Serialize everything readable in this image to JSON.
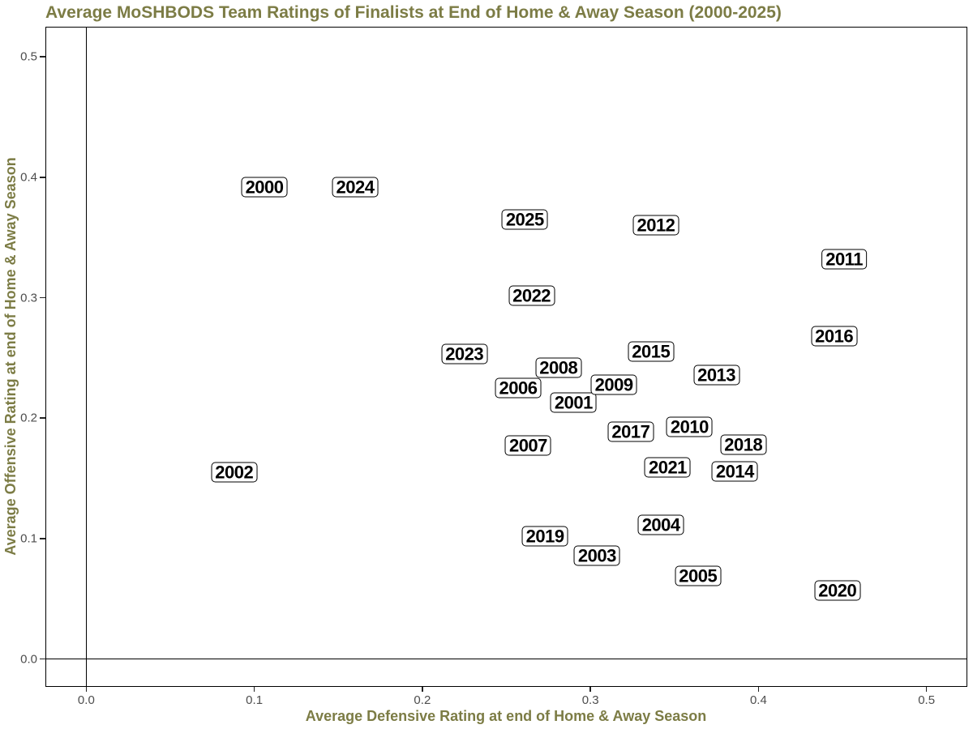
{
  "page": {
    "title": "Average MoSHBODS Team Ratings of Finalists at End of Home & Away Season (2000-2025)"
  },
  "colors": {
    "title_text": "#7c7c45",
    "axis_title_text": "#7c7c45",
    "tick_label_text": "#4d4d4d",
    "panel_border": "#000000",
    "zero_line": "#000000",
    "point_box_border": "#000000",
    "point_box_fill": "#ffffff",
    "point_text": "#000000",
    "background": "#ffffff"
  },
  "chart_data": {
    "type": "scatter",
    "title": "Average MoSHBODS Team Ratings of Finalists at End of Home & Away Season (2000-2025)",
    "xlabel": "Average Defensive Rating at end of Home & Away Season",
    "ylabel": "Average Offensive Rating at end of Home & Away Season",
    "xlim": [
      -0.0243,
      0.5243
    ],
    "ylim": [
      -0.0232,
      0.525
    ],
    "x_ticks": [
      0,
      0.1,
      0.2,
      0.3,
      0.4,
      0.5
    ],
    "x_tick_labels": [
      "0.0",
      "0.1",
      "0.2",
      "0.3",
      "0.4",
      "0.5"
    ],
    "y_ticks": [
      0,
      0.1,
      0.2,
      0.3,
      0.4,
      0.5
    ],
    "y_tick_labels": [
      "0.0",
      "0.1",
      "0.2",
      "0.3",
      "0.4",
      "0.5"
    ],
    "grid": false,
    "legend": false,
    "point_style": "boxed-year-label",
    "reference_lines": {
      "vline_x": 0,
      "hline_y": 0
    },
    "points": [
      {
        "label": "2000",
        "x": 0.106,
        "y": 0.392
      },
      {
        "label": "2001",
        "x": 0.29,
        "y": 0.213
      },
      {
        "label": "2002",
        "x": 0.088,
        "y": 0.155
      },
      {
        "label": "2003",
        "x": 0.304,
        "y": 0.086
      },
      {
        "label": "2004",
        "x": 0.342,
        "y": 0.111
      },
      {
        "label": "2005",
        "x": 0.364,
        "y": 0.069
      },
      {
        "label": "2006",
        "x": 0.257,
        "y": 0.225
      },
      {
        "label": "2007",
        "x": 0.263,
        "y": 0.177
      },
      {
        "label": "2008",
        "x": 0.281,
        "y": 0.242
      },
      {
        "label": "2009",
        "x": 0.314,
        "y": 0.228
      },
      {
        "label": "2010",
        "x": 0.359,
        "y": 0.193
      },
      {
        "label": "2011",
        "x": 0.451,
        "y": 0.332
      },
      {
        "label": "2012",
        "x": 0.339,
        "y": 0.36
      },
      {
        "label": "2013",
        "x": 0.375,
        "y": 0.236
      },
      {
        "label": "2014",
        "x": 0.386,
        "y": 0.156
      },
      {
        "label": "2015",
        "x": 0.336,
        "y": 0.255
      },
      {
        "label": "2016",
        "x": 0.445,
        "y": 0.268
      },
      {
        "label": "2017",
        "x": 0.324,
        "y": 0.189
      },
      {
        "label": "2018",
        "x": 0.391,
        "y": 0.178
      },
      {
        "label": "2019",
        "x": 0.273,
        "y": 0.102
      },
      {
        "label": "2020",
        "x": 0.447,
        "y": 0.057
      },
      {
        "label": "2021",
        "x": 0.346,
        "y": 0.159
      },
      {
        "label": "2022",
        "x": 0.265,
        "y": 0.302
      },
      {
        "label": "2023",
        "x": 0.225,
        "y": 0.253
      },
      {
        "label": "2024",
        "x": 0.16,
        "y": 0.392
      },
      {
        "label": "2025",
        "x": 0.261,
        "y": 0.365
      }
    ]
  }
}
